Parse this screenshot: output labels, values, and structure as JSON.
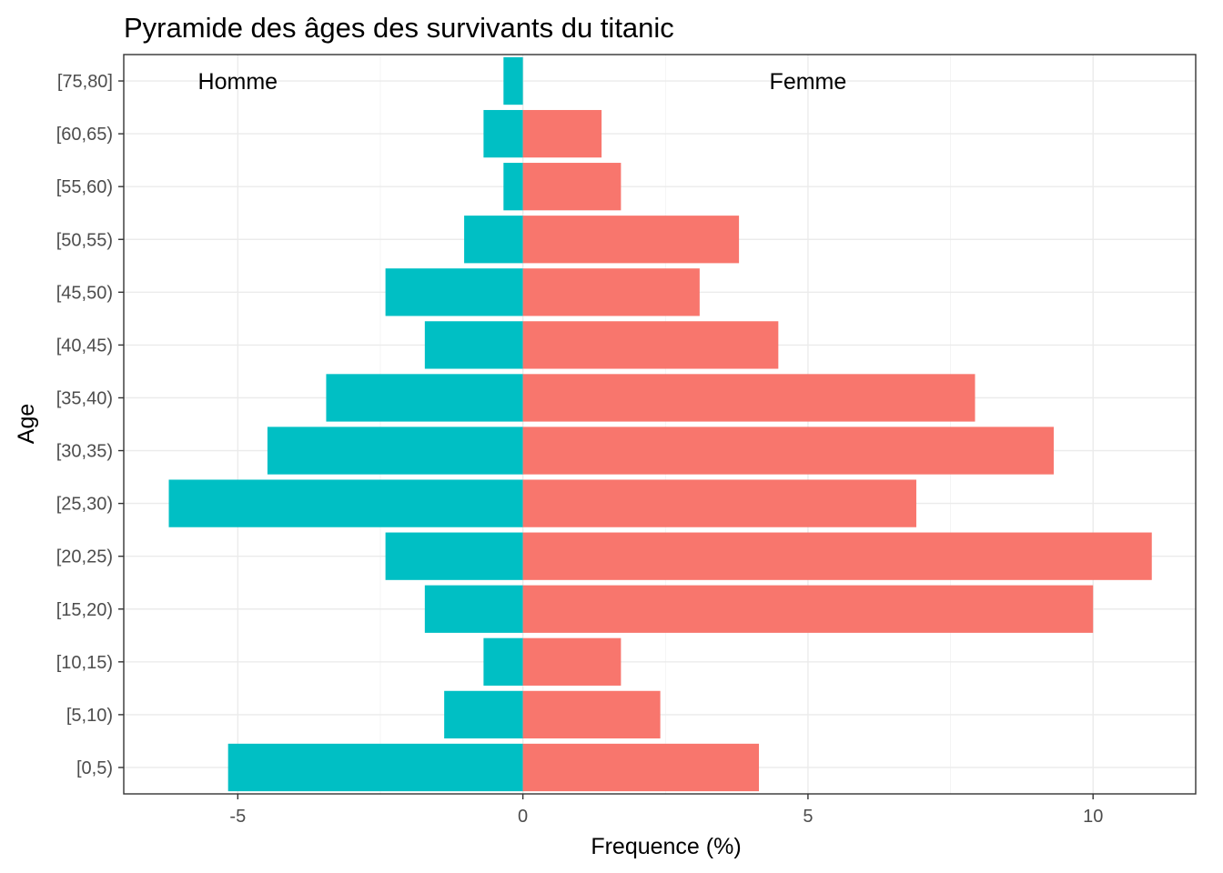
{
  "chart_data": {
    "type": "bar",
    "orientation": "horizontal",
    "title": "Pyramide des âges des survivants du titanic",
    "xlabel": "Frequence (%)",
    "ylabel": "Age",
    "categories": [
      "[0,5)",
      "[5,10)",
      "[10,15)",
      "[15,20)",
      "[20,25)",
      "[25,30)",
      "[30,35)",
      "[35,40)",
      "[40,45)",
      "[45,50)",
      "[50,55)",
      "[55,60)",
      "[60,65)",
      "[75,80]"
    ],
    "series": [
      {
        "key": "homme",
        "color": "#00BFC4",
        "values": [
          -5.17,
          -1.38,
          -0.69,
          -1.72,
          -2.41,
          -6.21,
          -4.48,
          -3.45,
          -1.72,
          -2.41,
          -1.03,
          -0.34,
          -0.69,
          -0.34
        ]
      },
      {
        "key": "femme",
        "color": "#F8766D",
        "values": [
          4.14,
          2.41,
          1.72,
          10.0,
          11.03,
          6.9,
          9.31,
          7.93,
          4.48,
          3.1,
          3.79,
          1.72,
          1.38,
          0
        ]
      }
    ],
    "annotations": [
      {
        "text": "Homme",
        "x": -5.0,
        "category": "[75,80]"
      },
      {
        "text": "Femme",
        "x": 5.0,
        "category": "[75,80]"
      }
    ],
    "xticks": [
      -5,
      0,
      5,
      10
    ],
    "xtick_labels": [
      "-5",
      "0",
      "5",
      "10"
    ],
    "xlim": [
      -7.0,
      11.8
    ],
    "grid": true,
    "legend": "none"
  }
}
